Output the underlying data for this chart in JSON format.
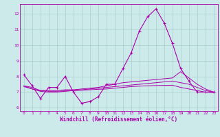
{
  "xlabel": "Windchill (Refroidissement éolien,°C)",
  "bg_color": "#cceaea",
  "grid_color": "#aacccc",
  "line_color": "#aa00aa",
  "xlim": [
    -0.5,
    23.5
  ],
  "ylim": [
    5.8,
    12.6
  ],
  "yticks": [
    6,
    7,
    8,
    9,
    10,
    11,
    12
  ],
  "xticks": [
    0,
    1,
    2,
    3,
    4,
    5,
    6,
    7,
    8,
    9,
    10,
    11,
    12,
    13,
    14,
    15,
    16,
    17,
    18,
    19,
    20,
    21,
    22,
    23
  ],
  "series_main": [
    8.1,
    7.4,
    6.6,
    7.3,
    7.3,
    8.0,
    7.0,
    6.3,
    6.4,
    6.7,
    7.5,
    7.5,
    8.5,
    9.5,
    10.9,
    11.8,
    12.3,
    11.4,
    10.1,
    8.5,
    7.7,
    7.0,
    7.0,
    7.0
  ],
  "series_s1": [
    7.4,
    7.3,
    7.1,
    7.1,
    7.1,
    7.15,
    7.15,
    7.2,
    7.25,
    7.3,
    7.4,
    7.5,
    7.6,
    7.65,
    7.7,
    7.75,
    7.8,
    7.85,
    7.9,
    8.3,
    7.9,
    7.5,
    7.2,
    7.0
  ],
  "series_s2": [
    7.4,
    7.2,
    7.05,
    7.0,
    7.0,
    7.05,
    7.1,
    7.15,
    7.2,
    7.25,
    7.3,
    7.35,
    7.4,
    7.45,
    7.5,
    7.55,
    7.6,
    7.65,
    7.7,
    7.6,
    7.5,
    7.3,
    7.1,
    7.0
  ],
  "series_s3": [
    7.35,
    7.2,
    7.1,
    7.05,
    7.05,
    7.08,
    7.1,
    7.12,
    7.15,
    7.18,
    7.2,
    7.25,
    7.3,
    7.35,
    7.38,
    7.4,
    7.42,
    7.43,
    7.44,
    7.3,
    7.2,
    7.1,
    7.0,
    6.97
  ]
}
